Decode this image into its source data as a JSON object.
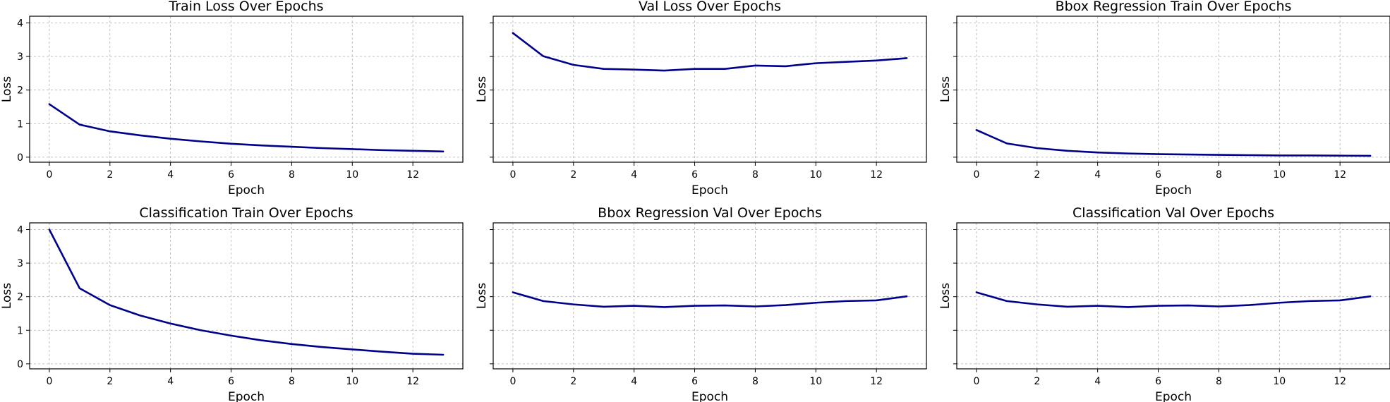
{
  "chart_data": [
    {
      "type": "line",
      "title": "Train Loss Over Epochs",
      "xlabel": "Epoch",
      "ylabel": "Loss",
      "x": [
        0,
        1,
        2,
        3,
        4,
        5,
        6,
        7,
        8,
        9,
        10,
        11,
        12,
        13
      ],
      "series": [
        {
          "values": [
            1.58,
            0.97,
            0.77,
            0.65,
            0.55,
            0.47,
            0.4,
            0.35,
            0.31,
            0.27,
            0.24,
            0.21,
            0.19,
            0.17
          ]
        }
      ],
      "xlim": [
        -0.65,
        13.65
      ],
      "ylim": [
        -0.15,
        4.2
      ],
      "xticks": [
        0,
        2,
        4,
        6,
        8,
        10,
        12
      ],
      "yticks": [
        0,
        1,
        2,
        3,
        4
      ],
      "show_ytick_labels": true,
      "grid": true,
      "color": "#00008b"
    },
    {
      "type": "line",
      "title": "Val Loss Over Epochs",
      "xlabel": "Epoch",
      "ylabel": "Loss",
      "x": [
        0,
        1,
        2,
        3,
        4,
        5,
        6,
        7,
        8,
        9,
        10,
        11,
        12,
        13
      ],
      "series": [
        {
          "values": [
            3.7,
            3.01,
            2.75,
            2.63,
            2.61,
            2.58,
            2.63,
            2.63,
            2.73,
            2.71,
            2.8,
            2.84,
            2.88,
            2.95
          ]
        }
      ],
      "xlim": [
        -0.65,
        13.65
      ],
      "ylim": [
        -0.15,
        4.2
      ],
      "xticks": [
        0,
        2,
        4,
        6,
        8,
        10,
        12
      ],
      "yticks": [
        0,
        1,
        2,
        3,
        4
      ],
      "show_ytick_labels": false,
      "grid": true,
      "color": "#00008b"
    },
    {
      "type": "line",
      "title": "Bbox Regression Train Over Epochs",
      "xlabel": "Epoch",
      "ylabel": "Loss",
      "x": [
        0,
        1,
        2,
        3,
        4,
        5,
        6,
        7,
        8,
        9,
        10,
        11,
        12,
        13
      ],
      "series": [
        {
          "values": [
            0.81,
            0.41,
            0.27,
            0.19,
            0.14,
            0.11,
            0.09,
            0.08,
            0.07,
            0.06,
            0.05,
            0.05,
            0.045,
            0.04
          ]
        }
      ],
      "xlim": [
        -0.65,
        13.65
      ],
      "ylim": [
        -0.15,
        4.2
      ],
      "xticks": [
        0,
        2,
        4,
        6,
        8,
        10,
        12
      ],
      "yticks": [
        0,
        1,
        2,
        3,
        4
      ],
      "show_ytick_labels": false,
      "grid": true,
      "color": "#00008b"
    },
    {
      "type": "line",
      "title": "Classification Train Over Epochs",
      "xlabel": "Epoch",
      "ylabel": "Loss",
      "x": [
        0,
        1,
        2,
        3,
        4,
        5,
        6,
        7,
        8,
        9,
        10,
        11,
        12,
        13
      ],
      "series": [
        {
          "values": [
            4.0,
            2.25,
            1.75,
            1.44,
            1.2,
            1.0,
            0.84,
            0.7,
            0.59,
            0.5,
            0.43,
            0.36,
            0.3,
            0.27
          ]
        }
      ],
      "xlim": [
        -0.65,
        13.65
      ],
      "ylim": [
        -0.15,
        4.2
      ],
      "xticks": [
        0,
        2,
        4,
        6,
        8,
        10,
        12
      ],
      "yticks": [
        0,
        1,
        2,
        3,
        4
      ],
      "show_ytick_labels": true,
      "grid": true,
      "color": "#00008b"
    },
    {
      "type": "line",
      "title": "Bbox Regression Val Over Epochs",
      "xlabel": "Epoch",
      "ylabel": "Loss",
      "x": [
        0,
        1,
        2,
        3,
        4,
        5,
        6,
        7,
        8,
        9,
        10,
        11,
        12,
        13
      ],
      "series": [
        {
          "values": [
            2.13,
            1.87,
            1.77,
            1.7,
            1.73,
            1.69,
            1.73,
            1.74,
            1.71,
            1.75,
            1.82,
            1.87,
            1.89,
            2.01
          ]
        }
      ],
      "xlim": [
        -0.65,
        13.65
      ],
      "ylim": [
        -0.15,
        4.2
      ],
      "xticks": [
        0,
        2,
        4,
        6,
        8,
        10,
        12
      ],
      "yticks": [
        0,
        1,
        2,
        3,
        4
      ],
      "show_ytick_labels": false,
      "grid": true,
      "color": "#00008b"
    },
    {
      "type": "line",
      "title": "Classification Val Over Epochs",
      "xlabel": "Epoch",
      "ylabel": "Loss",
      "x": [
        0,
        1,
        2,
        3,
        4,
        5,
        6,
        7,
        8,
        9,
        10,
        11,
        12,
        13
      ],
      "series": [
        {
          "values": [
            2.13,
            1.87,
            1.77,
            1.7,
            1.73,
            1.69,
            1.73,
            1.74,
            1.71,
            1.75,
            1.82,
            1.87,
            1.89,
            2.01
          ]
        }
      ],
      "xlim": [
        -0.65,
        13.65
      ],
      "ylim": [
        -0.15,
        4.2
      ],
      "xticks": [
        0,
        2,
        4,
        6,
        8,
        10,
        12
      ],
      "yticks": [
        0,
        1,
        2,
        3,
        4
      ],
      "show_ytick_labels": false,
      "grid": true,
      "color": "#00008b"
    }
  ]
}
